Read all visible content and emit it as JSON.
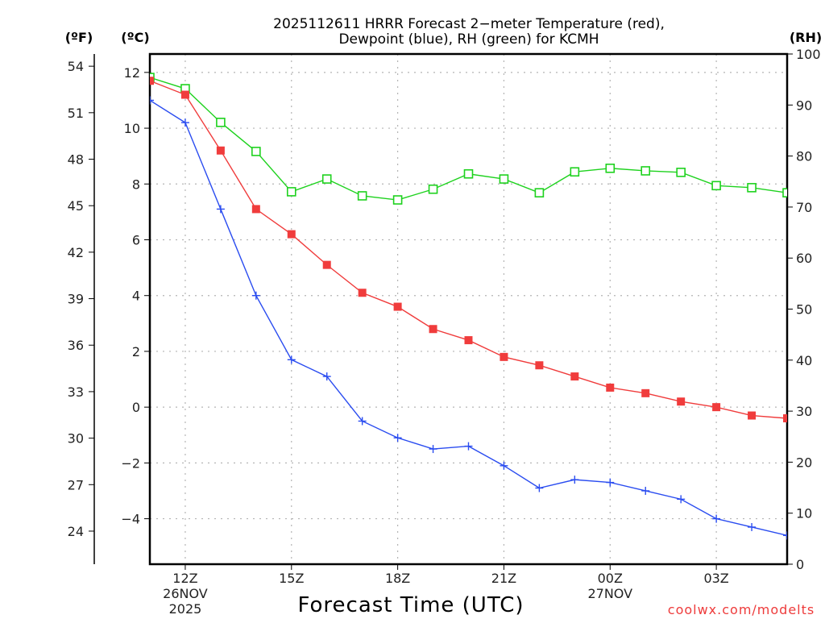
{
  "chart_data": {
    "type": "line",
    "title_line1": "2025112611 HRRR Forecast 2−meter Temperature (red),",
    "title_line2": "Dewpoint (blue), RH (green) for KCMH",
    "xlabel": "Forecast Time (UTC)",
    "credit": "coolwx.com/modelts",
    "axis_units": {
      "fahrenheit": "(ºF)",
      "celsius": "(ºC)",
      "rh": "(RH)"
    },
    "x_hours_utc": [
      11,
      12,
      13,
      14,
      15,
      16,
      17,
      18,
      19,
      20,
      21,
      22,
      23,
      0,
      1,
      2,
      3,
      4,
      5
    ],
    "x_ticks": [
      {
        "label": "12Z",
        "sub1": "26NOV",
        "sub2": "2025",
        "index": 1
      },
      {
        "label": "15Z",
        "sub1": "",
        "sub2": "",
        "index": 4
      },
      {
        "label": "18Z",
        "sub1": "",
        "sub2": "",
        "index": 7
      },
      {
        "label": "21Z",
        "sub1": "",
        "sub2": "",
        "index": 10
      },
      {
        "label": "00Z",
        "sub1": "27NOV",
        "sub2": "",
        "index": 13
      },
      {
        "label": "03Z",
        "sub1": "",
        "sub2": "",
        "index": 16
      }
    ],
    "celsius_axis": {
      "range": [
        -5.63,
        12.66
      ],
      "ticks": [
        12,
        10,
        8,
        6,
        4,
        2,
        0,
        -2,
        -4
      ],
      "tick_labels": [
        "12",
        "10",
        "8",
        "6",
        "4",
        "2",
        "0",
        "−2",
        "−4"
      ]
    },
    "fahrenheit_axis": {
      "ticks": [
        54,
        51,
        48,
        45,
        42,
        39,
        36,
        33,
        30,
        27,
        24
      ]
    },
    "rh_axis": {
      "range": [
        0,
        100
      ],
      "ticks": [
        100,
        90,
        80,
        70,
        60,
        50,
        40,
        30,
        20,
        10,
        0
      ]
    },
    "grid": true,
    "series": [
      {
        "name": "Temperature",
        "units": "C",
        "color": "#f03c3c",
        "marker": "filled-square",
        "values": [
          11.7,
          11.2,
          9.2,
          7.1,
          6.2,
          5.1,
          4.1,
          3.6,
          2.8,
          2.4,
          1.8,
          1.5,
          1.1,
          0.7,
          0.5,
          0.2,
          0.0,
          -0.3,
          -0.4
        ]
      },
      {
        "name": "Dewpoint",
        "units": "C",
        "color": "#2a4cf0",
        "marker": "plus",
        "values": [
          11.0,
          10.2,
          7.1,
          4.0,
          1.7,
          1.1,
          -0.5,
          -1.1,
          -1.5,
          -1.4,
          -2.1,
          -2.9,
          -2.6,
          -2.7,
          -3.0,
          -3.3,
          -4.0,
          -4.3,
          -4.6
        ]
      },
      {
        "name": "RH",
        "units": "%",
        "color": "#1ed21e",
        "marker": "open-square",
        "values": [
          95.4,
          93.2,
          86.6,
          80.9,
          73.0,
          75.5,
          72.2,
          71.4,
          73.5,
          76.5,
          75.5,
          72.8,
          76.9,
          77.6,
          77.1,
          76.8,
          74.2,
          73.8,
          72.8
        ]
      }
    ]
  }
}
